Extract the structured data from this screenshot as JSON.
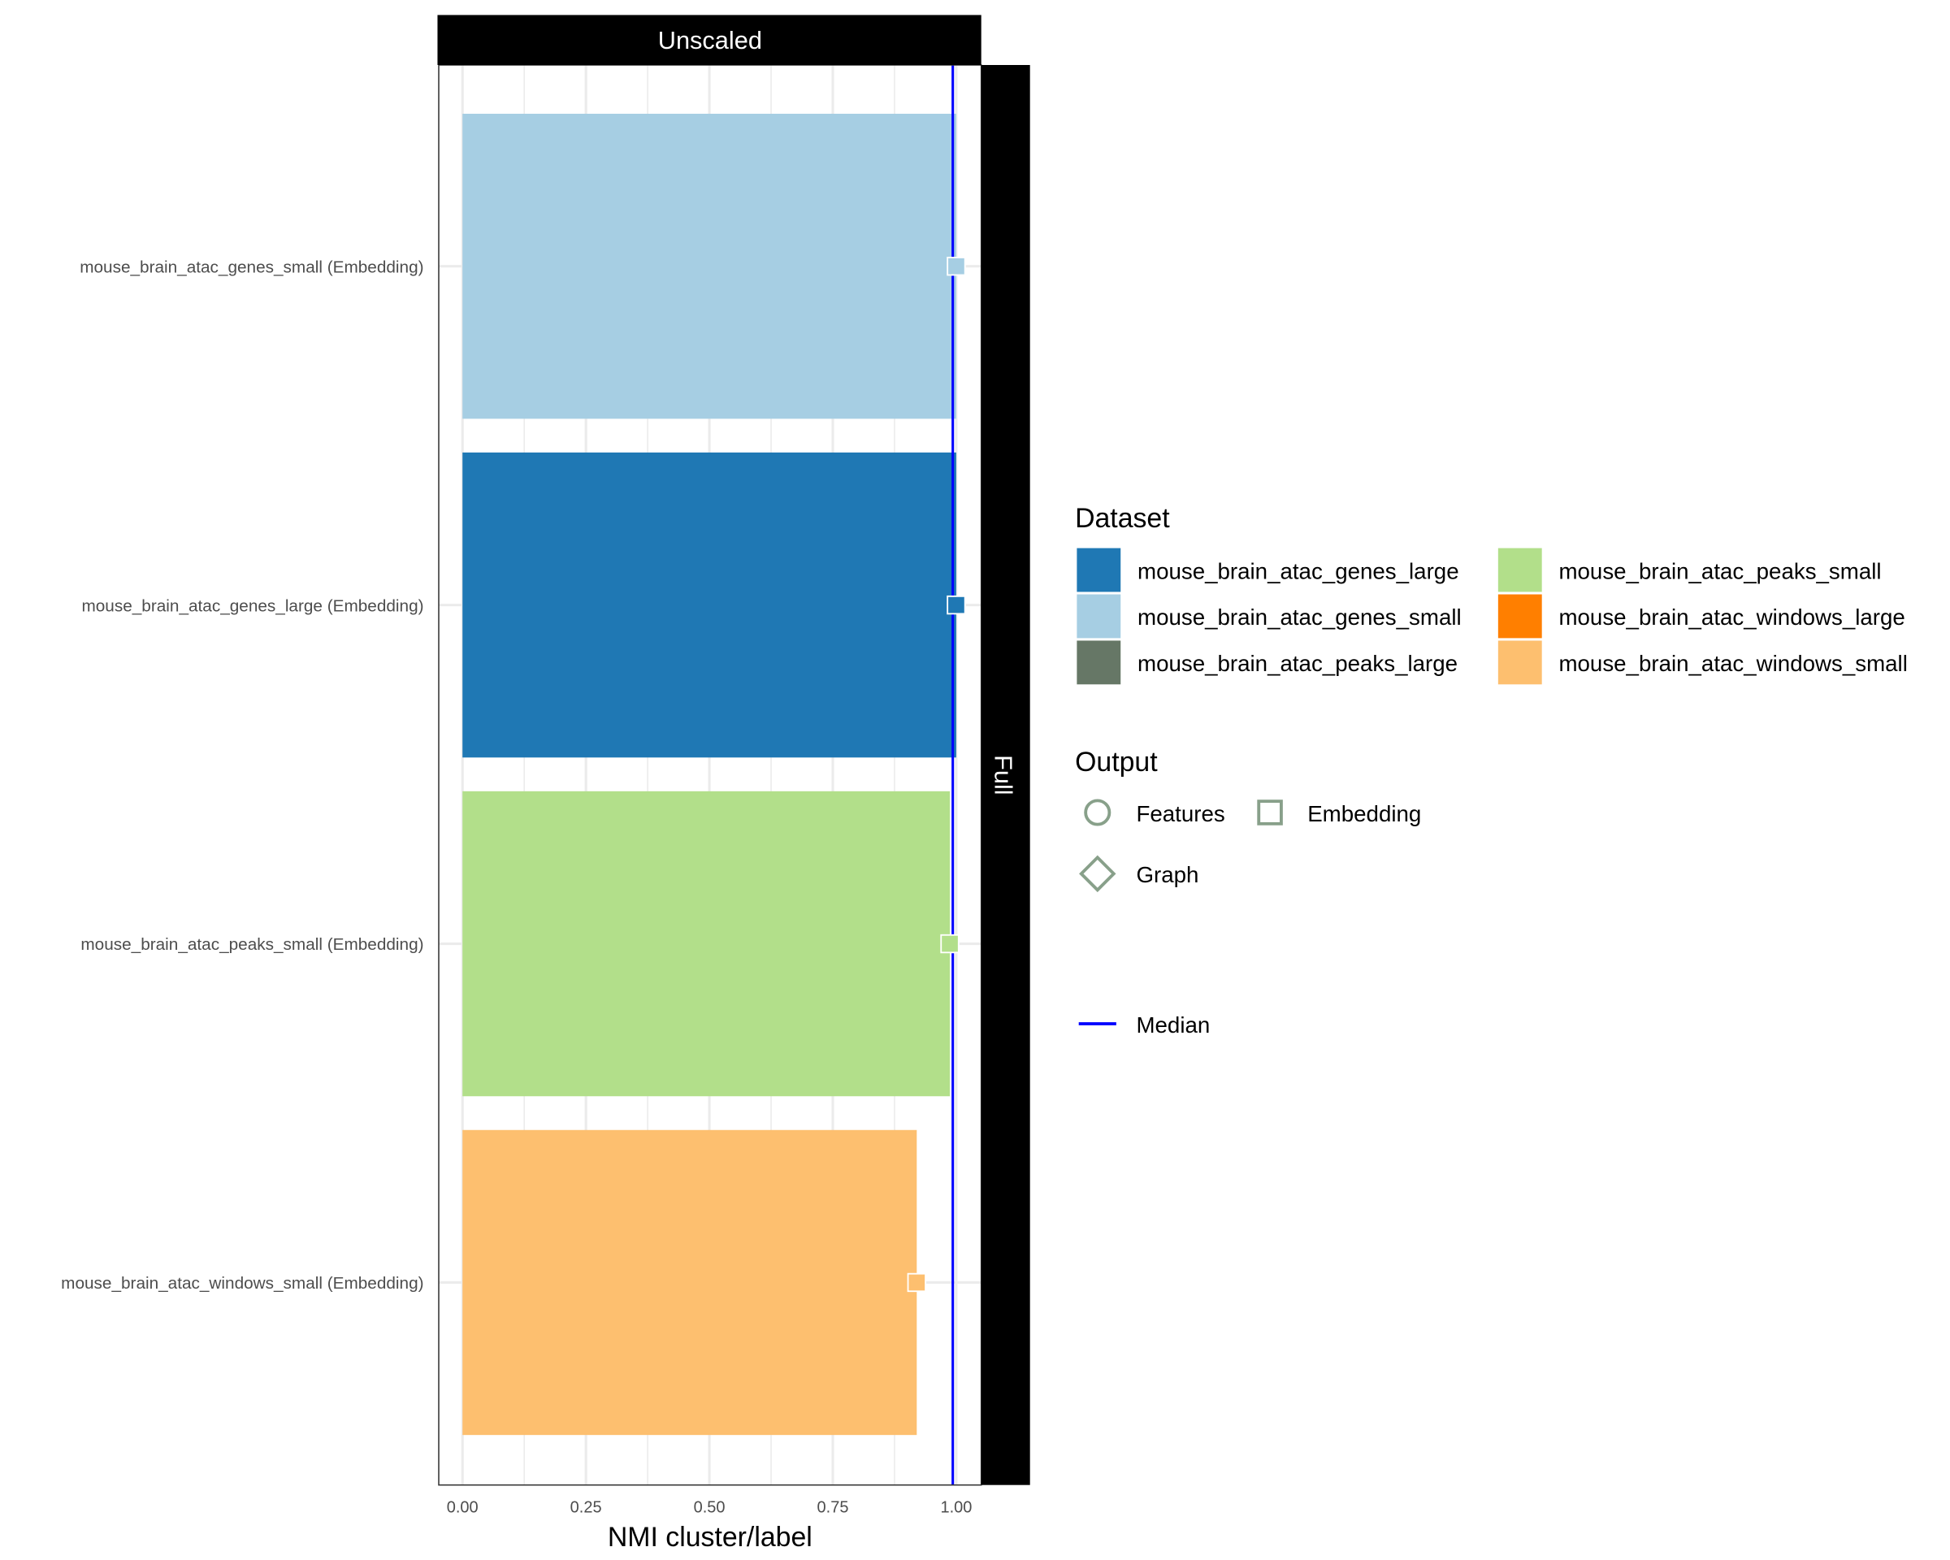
{
  "chart_data": {
    "type": "bar",
    "orientation": "horizontal",
    "facet_column_label": "Unscaled",
    "facet_row_label": "Full",
    "xlabel": "NMI cluster/label",
    "ylabel": "",
    "xlim": [
      0,
      1.05
    ],
    "x_ticks": [
      "0.00",
      "0.25",
      "0.50",
      "0.75",
      "1.00"
    ],
    "x_tick_values": [
      0,
      0.25,
      0.5,
      0.75,
      1.0
    ],
    "grid": true,
    "categories": [
      "mouse_brain_atac_genes_small (Embedding)",
      "mouse_brain_atac_genes_large (Embedding)",
      "mouse_brain_atac_peaks_small (Embedding)",
      "mouse_brain_atac_windows_small (Embedding)"
    ],
    "values": [
      1.0,
      1.0,
      0.987,
      0.92
    ],
    "bar_datasets": [
      "mouse_brain_atac_genes_small",
      "mouse_brain_atac_genes_large",
      "mouse_brain_atac_peaks_small",
      "mouse_brain_atac_windows_small"
    ],
    "point_shape": "square",
    "median": 0.993,
    "median_color": "#0000ff",
    "legend_placement": "right",
    "legend": {
      "dataset_title": "Dataset",
      "datasets": [
        {
          "name": "mouse_brain_atac_genes_large",
          "color": "#1f78b4"
        },
        {
          "name": "mouse_brain_atac_genes_small",
          "color": "#a6cee3"
        },
        {
          "name": "mouse_brain_atac_peaks_large",
          "color": "#667766"
        },
        {
          "name": "mouse_brain_atac_peaks_small",
          "color": "#b2df8a"
        },
        {
          "name": "mouse_brain_atac_windows_large",
          "color": "#ff7f00"
        },
        {
          "name": "mouse_brain_atac_windows_small",
          "color": "#fdbf6f"
        }
      ],
      "output_title": "Output",
      "outputs": [
        {
          "name": "Features",
          "shape": "circle"
        },
        {
          "name": "Embedding",
          "shape": "square"
        },
        {
          "name": "Graph",
          "shape": "diamond"
        }
      ],
      "median_label": "Median"
    }
  }
}
